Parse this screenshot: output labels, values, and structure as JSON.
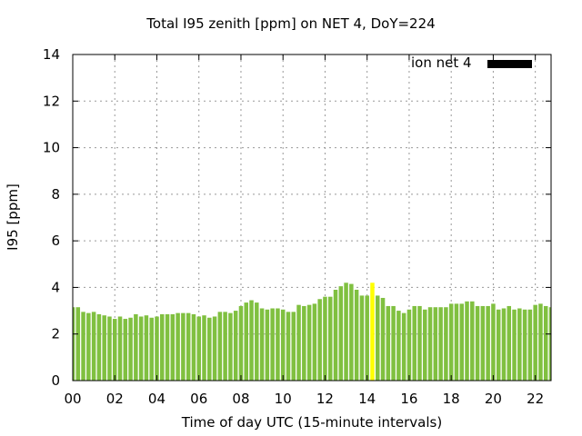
{
  "chart_data": {
    "type": "bar",
    "title": "Total I95 zenith [ppm] on NET 4, DoY=224",
    "xlabel": "Time of day UTC (15-minute intervals)",
    "ylabel": "I95 [ppm]",
    "legend": {
      "label": "ion net 4",
      "position": "top-right",
      "color": "#000000"
    },
    "grid": true,
    "xlim": [
      0,
      22.75
    ],
    "ylim": [
      0,
      14
    ],
    "xticks": [
      "00",
      "02",
      "04",
      "06",
      "08",
      "10",
      "12",
      "14",
      "16",
      "18",
      "20",
      "22"
    ],
    "yticks": [
      "0",
      "2",
      "4",
      "6",
      "8",
      "10",
      "12",
      "14"
    ],
    "bar_color": "#80c040",
    "highlight_color": "#ffff00",
    "highlight_index": 57,
    "interval_hours": 0.25,
    "values": [
      3.15,
      3.15,
      2.95,
      2.9,
      2.95,
      2.85,
      2.8,
      2.75,
      2.65,
      2.75,
      2.65,
      2.7,
      2.85,
      2.75,
      2.8,
      2.7,
      2.75,
      2.85,
      2.85,
      2.85,
      2.9,
      2.9,
      2.9,
      2.85,
      2.75,
      2.8,
      2.7,
      2.75,
      2.95,
      2.95,
      2.9,
      3.0,
      3.2,
      3.35,
      3.45,
      3.35,
      3.1,
      3.05,
      3.1,
      3.1,
      3.05,
      2.95,
      2.95,
      3.25,
      3.2,
      3.25,
      3.3,
      3.5,
      3.6,
      3.6,
      3.9,
      4.05,
      4.2,
      4.15,
      3.9,
      3.65,
      3.65,
      4.2,
      3.65,
      3.55,
      3.2,
      3.2,
      3.0,
      2.9,
      3.05,
      3.2,
      3.2,
      3.05,
      3.15,
      3.15,
      3.15,
      3.15,
      3.3,
      3.3,
      3.3,
      3.4,
      3.4,
      3.2,
      3.2,
      3.2,
      3.3,
      3.05,
      3.1,
      3.2,
      3.05,
      3.1,
      3.05,
      3.05,
      3.25,
      3.3,
      3.2,
      3.15
    ]
  }
}
